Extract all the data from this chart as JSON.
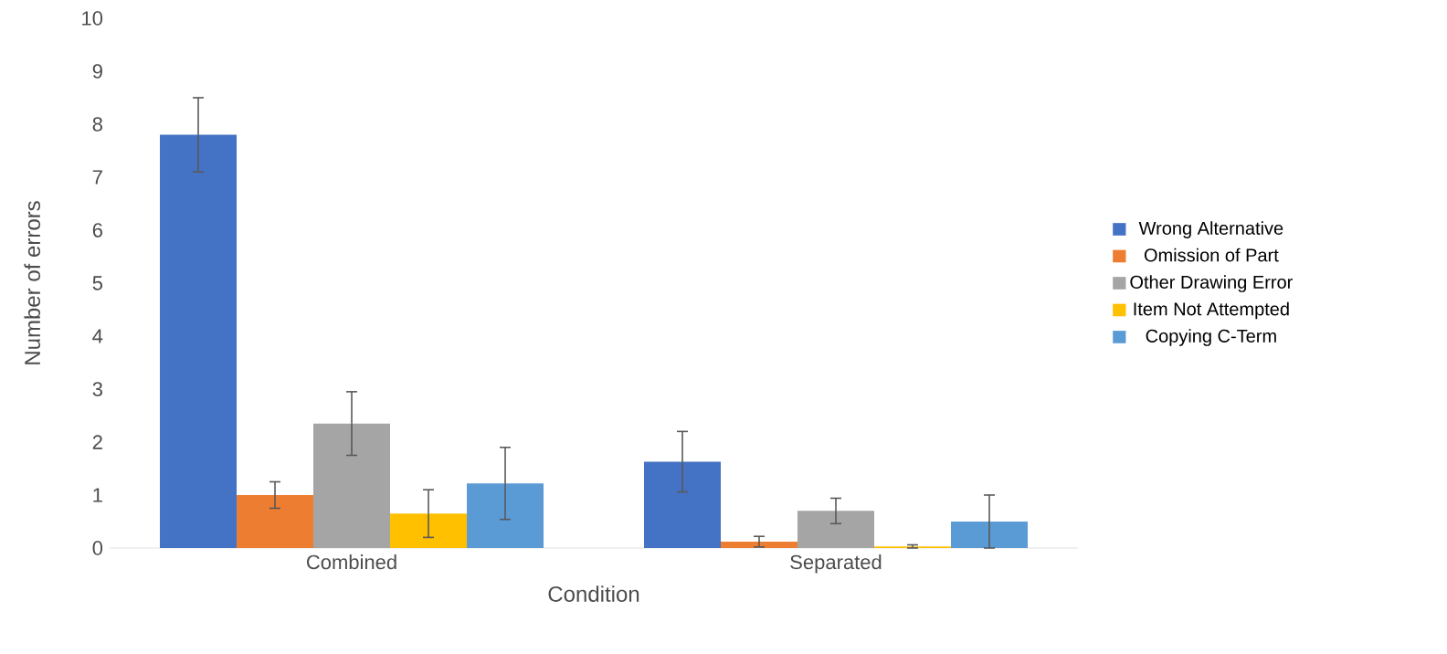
{
  "chart_data": {
    "type": "bar",
    "xlabel": "Condition",
    "ylabel": "Number of errors",
    "categories": [
      "Combined",
      "Separated"
    ],
    "series": [
      {
        "name": "Wrong Alternative",
        "color": "#4472c4",
        "values": [
          7.8,
          1.63
        ],
        "errors": [
          0.7,
          0.57
        ]
      },
      {
        "name": "Omission of Part",
        "color": "#ed7d31",
        "values": [
          1.0,
          0.12
        ],
        "errors": [
          0.25,
          0.1
        ]
      },
      {
        "name": "Other Drawing Error",
        "color": "#a5a5a5",
        "values": [
          2.35,
          0.7
        ],
        "errors": [
          0.6,
          0.24
        ]
      },
      {
        "name": "Item Not Attempted",
        "color": "#ffc000",
        "values": [
          0.65,
          0.03
        ],
        "errors": [
          0.45,
          0.03
        ]
      },
      {
        "name": "Copying C-Term",
        "color": "#5b9bd5",
        "values": [
          1.22,
          0.5
        ],
        "errors": [
          0.68,
          0.5
        ]
      }
    ],
    "ylim": [
      0,
      10
    ],
    "yticks": [
      0,
      1,
      2,
      3,
      4,
      5,
      6,
      7,
      8,
      9,
      10
    ],
    "grid": false,
    "legend": "right"
  }
}
